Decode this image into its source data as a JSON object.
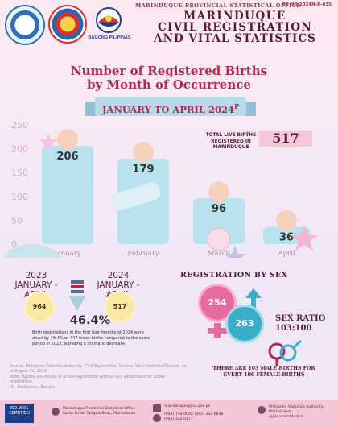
{
  "header": {
    "office": "MARINDUQUE PROVINCIAL STATISTICAL OFFICE",
    "reference_no": "RE NO 2024N-B-035",
    "title_line1": "MARINDUQUE",
    "title_line2": "CIVIL REGISTRATION",
    "title_line3": "AND VITAL STATISTICS",
    "bagong_pilipinas": "BAGONG PILIPINAS"
  },
  "chart_title_line1": "Number of Registered Births",
  "chart_title_line2": "by Month of Occurrence",
  "period": "JANUARY TO APRIL 2024",
  "period_sup": "P",
  "total": {
    "label_line1": "TOTAL LIVE BIRTHS",
    "label_line2": "REGISTERED IN MARINDUQUE",
    "value": "517"
  },
  "chart_data": {
    "type": "bar",
    "categories": [
      "January",
      "February",
      "March",
      "April"
    ],
    "values": [
      206,
      179,
      96,
      36
    ],
    "yticks": [
      0,
      50,
      100,
      150,
      200,
      250
    ],
    "ylim": [
      0,
      250
    ],
    "grid": false,
    "title": "Number of Registered Births by Month of Occurrence"
  },
  "comparison": {
    "year_2023": "2023 JANUARY - APRIL",
    "value_2023": "964",
    "year_2024": "2024 JANUARY - APRIL",
    "value_2024": "517",
    "percent": "46.4%",
    "note": "Birth registrations in the first four months of 2024 were down by 46.4% or 447 fewer births compared to the same period in 2023, signaling a dramatic decrease."
  },
  "source": {
    "line1": "Source: Philippine Statistics Authority, Civil Registration Service, Vital Statistics Division, as of August 31, 2024",
    "line2": "Note: Figures are results of actual registration without any adjustment for under-registration.",
    "line3": "\"P - Preliminary Results"
  },
  "sex": {
    "title": "REGISTRATION BY SEX",
    "female": "254",
    "male": "263",
    "ratio_label": "SEX RATIO",
    "ratio_value": "103:100",
    "note": "THERE ARE 103 MALE BIRTHS FOR EVERY 100 FEMALE BIRTHS"
  },
  "footer": {
    "iso_line1": "ISO 9001",
    "iso_line2": "CERTIFIED",
    "address_line1": "Marinduque Provincial Statistical Office",
    "address_line2": "Kaido Street Tampus Boac, Marinduque",
    "email": "marinduque@psa.gov.ph",
    "phone1": "(042) 754-0004",
    "phone2": "(042) 332-0648",
    "phone3": "(042) 332-0177",
    "facebook_line1": "Philippine Statistics Authority-",
    "facebook_line2": "Marinduque",
    "facebook_line3": "@psa.marinduque"
  },
  "colors": {
    "bar": "#b7e2ee",
    "accent": "#b0294f",
    "female": "#e86aa3",
    "male": "#38aec9"
  }
}
